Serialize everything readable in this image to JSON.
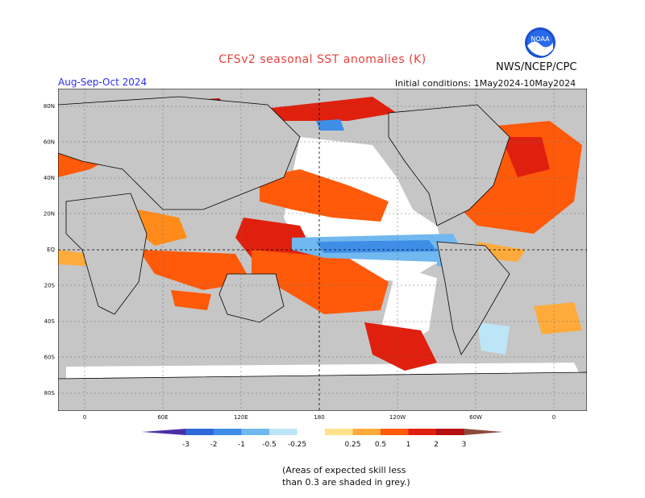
{
  "title": "CFSv2 seasonal SST anomalies (K)",
  "org": "NWS/NCEP/CPC",
  "logo_text": "NOAA",
  "season": "Aug-Sep-Oct 2024",
  "initial_conditions": "Initial conditions: 1May2024-10May2024",
  "note_line1": "(Areas of expected skill less",
  "note_line2": "than 0.3 are shaded in grey.)",
  "map": {
    "lat_labels": [
      "80N",
      "60N",
      "40N",
      "20N",
      "EQ",
      "20S",
      "40S",
      "60S",
      "80S"
    ],
    "lon_labels": [
      "0",
      "60E",
      "120E",
      "180",
      "120W",
      "60W",
      "0"
    ],
    "reference_lines": [
      "equator",
      "dateline"
    ]
  },
  "colorbar": {
    "ticks": [
      "-3",
      "-2",
      "-1",
      "-0.5",
      "-0.25",
      "0.25",
      "0.5",
      "1",
      "2",
      "3"
    ],
    "colors": [
      "#4a2ea8",
      "#2f68d8",
      "#3e8ee8",
      "#71b8f0",
      "#bde5f8",
      "#ffffff",
      "#ffe28a",
      "#ffab3c",
      "#ff5a0a",
      "#e0200e",
      "#b50f0f",
      "#8b4a3c"
    ]
  },
  "colors": {
    "title": "#e8403a",
    "season": "#2d2df0",
    "land": "#c6c6c6",
    "no_skill": "#c6c6c6"
  }
}
